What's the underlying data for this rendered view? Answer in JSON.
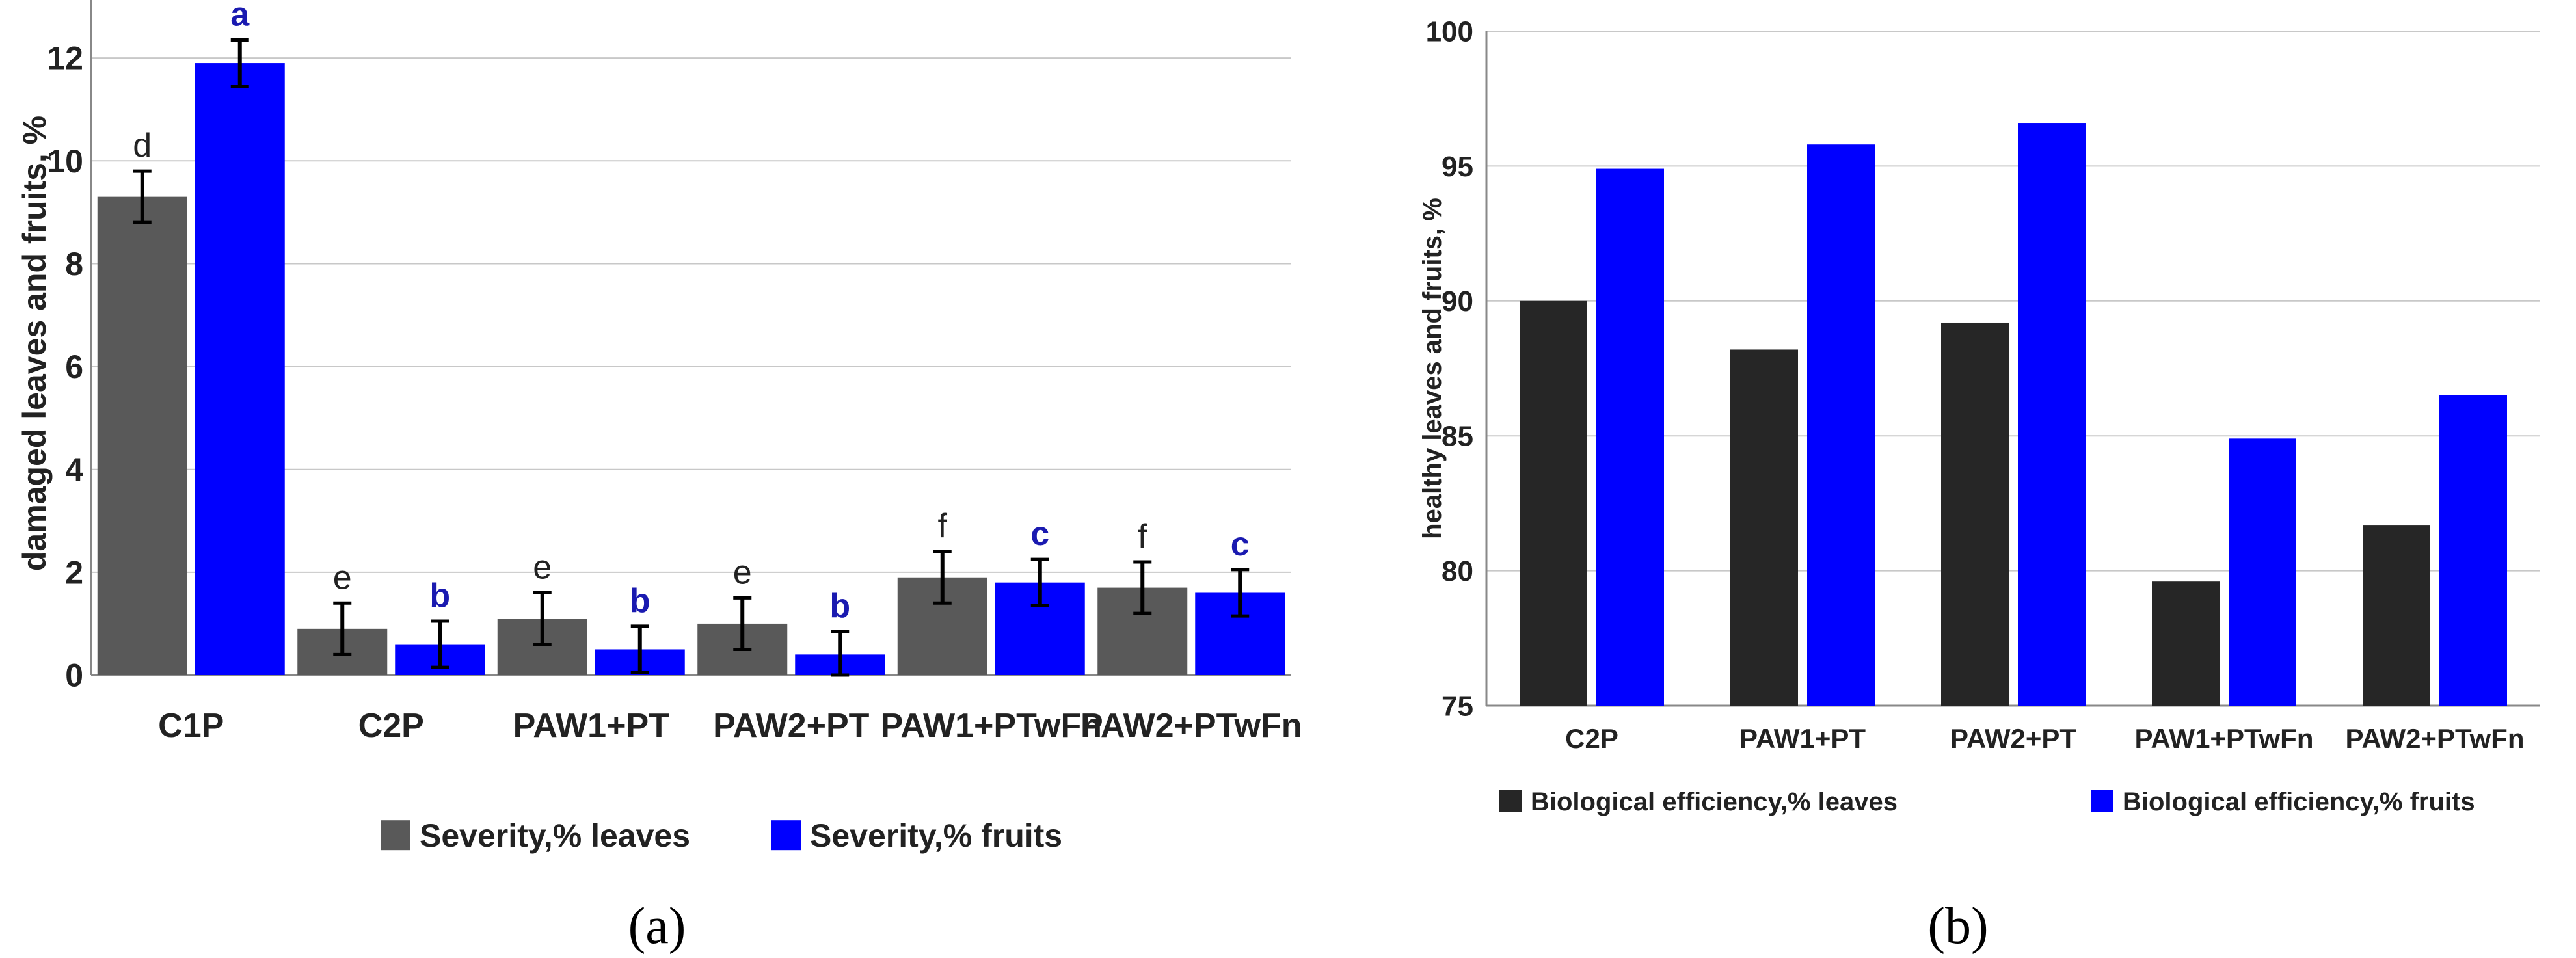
{
  "chart_data": [
    {
      "panel_label": "(a)",
      "type": "bar",
      "title": "",
      "xlabel": "",
      "ylabel": "damaged leaves and fruits, %",
      "ylim": [
        0,
        12.9
      ],
      "yticks": [
        0,
        2,
        4,
        6,
        8,
        10,
        12
      ],
      "grid": true,
      "legend_position": "bottom",
      "categories": [
        "C1P",
        "C2P",
        "PAW1+PT",
        "PAW2+PT",
        "PAW1+PTwFn",
        "PAW2+PTwFn"
      ],
      "series": [
        {
          "name": "Severity,% leaves",
          "color": "#595959",
          "values": [
            9.3,
            0.9,
            1.1,
            1.0,
            1.9,
            1.7
          ],
          "errors": [
            0.5,
            0.5,
            0.5,
            0.5,
            0.5,
            0.5
          ],
          "labels": [
            "d",
            "e",
            "e",
            "e",
            "f",
            "f"
          ],
          "label_color": "#222222"
        },
        {
          "name": "Severity,%  fruits",
          "color": "#0000ff",
          "values": [
            11.9,
            0.6,
            0.5,
            0.4,
            1.8,
            1.6
          ],
          "errors": [
            0.45,
            0.45,
            0.45,
            0.45,
            0.45,
            0.45
          ],
          "labels": [
            "a",
            "b",
            "b",
            "b",
            "c",
            "c"
          ],
          "label_color": "#1a1ab0"
        }
      ]
    },
    {
      "panel_label": "(b)",
      "type": "bar",
      "title": "",
      "xlabel": "",
      "ylabel": "healthy leaves and fruits, %",
      "ylim": [
        75,
        100
      ],
      "yticks": [
        75,
        80,
        85,
        90,
        95,
        100
      ],
      "grid": true,
      "legend_position": "bottom",
      "categories": [
        "C2P",
        "PAW1+PT",
        "PAW2+PT",
        "PAW1+PTwFn",
        "PAW2+PTwFn"
      ],
      "series": [
        {
          "name": "Biological efficiency,% leaves",
          "color": "#262626",
          "values": [
            90.0,
            88.2,
            89.2,
            79.6,
            81.7
          ]
        },
        {
          "name": "Biological efficiency,% fruits",
          "color": "#0000ff",
          "values": [
            94.9,
            95.8,
            96.6,
            84.9,
            86.5
          ]
        }
      ]
    }
  ]
}
